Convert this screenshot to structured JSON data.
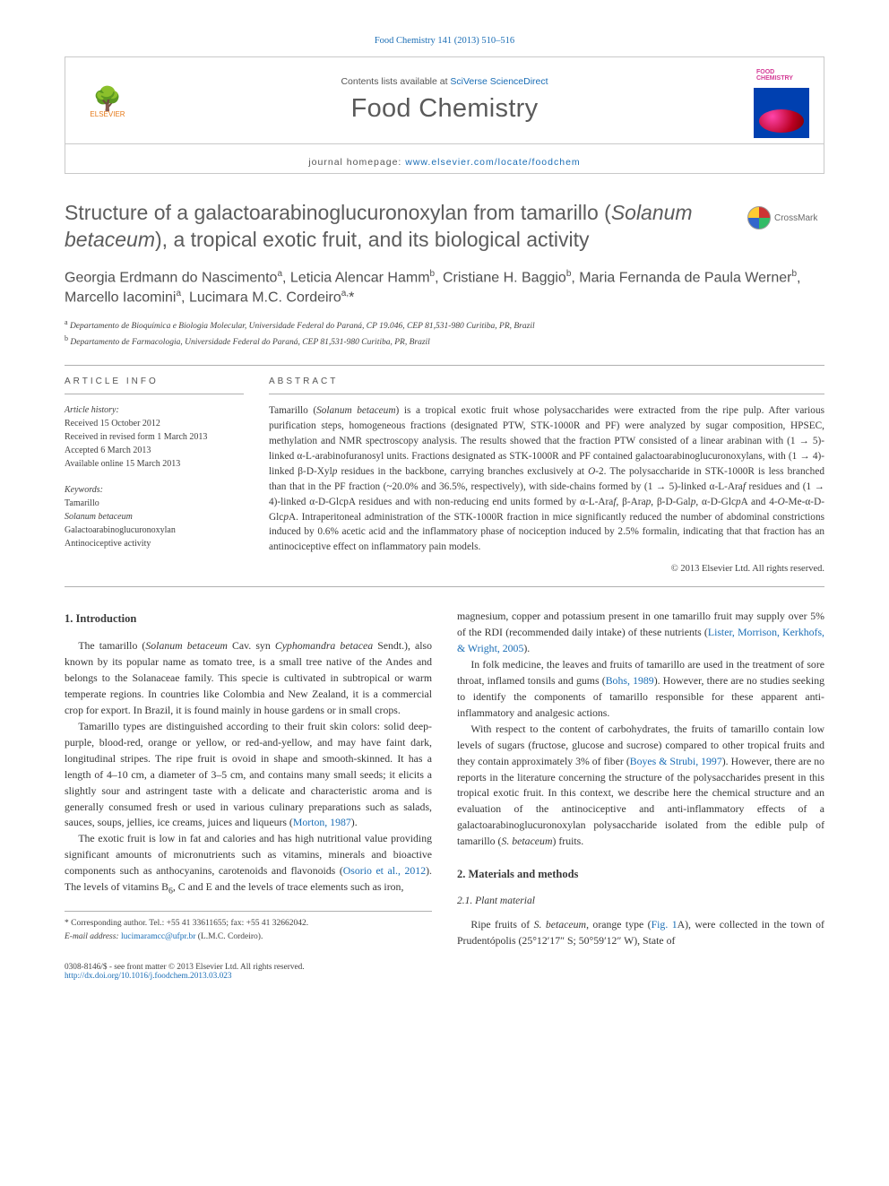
{
  "topline": {
    "journal_abbrev": "Food Chemistry 141 (2013) 510–516",
    "journal_link": "Food Chemistry 141 (2013) 510–516"
  },
  "masthead": {
    "contents_line_prefix": "Contents lists available at ",
    "contents_link": "SciVerse ScienceDirect",
    "journal_name": "Food Chemistry",
    "homepage_prefix": "journal homepage: ",
    "homepage_url": "www.elsevier.com/locate/foodchem",
    "publisher": "ELSEVIER",
    "cover_label": "FOOD CHEMISTRY"
  },
  "crossmark": {
    "label": "CrossMark"
  },
  "title": {
    "pre": "Structure of a galactoarabinoglucuronoxylan from tamarillo (",
    "ital": "Solanum betaceum",
    "post": "), a tropical exotic fruit, and its biological activity"
  },
  "authors_html": "Georgia Erdmann do Nascimento<sup>a</sup>, Leticia Alencar Hamm<sup>b</sup>, Cristiane H. Baggio<sup>b</sup>, Maria Fernanda de Paula Werner<sup>b</sup>, Marcello Iacomini<sup>a</sup>, Lucimara M.C. Cordeiro<sup>a,</sup><span class=\"aff-star\">*</span>",
  "affiliations": [
    {
      "sup": "a",
      "text": "Departamento de Bioquímica e Biologia Molecular, Universidade Federal do Paraná, CP 19.046, CEP 81,531-980 Curitiba, PR, Brazil"
    },
    {
      "sup": "b",
      "text": "Departamento de Farmacologia, Universidade Federal do Paraná, CEP 81,531-980 Curitiba, PR, Brazil"
    }
  ],
  "meta": {
    "article_info_heading": "ARTICLE INFO",
    "history_label": "Article history:",
    "history_lines": [
      "Received 15 October 2012",
      "Received in revised form 1 March 2013",
      "Accepted 6 March 2013",
      "Available online 15 March 2013"
    ],
    "keywords_label": "Keywords:",
    "keywords": [
      "Tamarillo",
      "<em>Solanum betaceum</em>",
      "Galactoarabinoglucuronoxylan",
      "Antinociceptive activity"
    ]
  },
  "abstract": {
    "heading": "ABSTRACT",
    "text": "Tamarillo (<em>Solanum betaceum</em>) is a tropical exotic fruit whose polysaccharides were extracted from the ripe pulp. After various purification steps, homogeneous fractions (designated PTW, STK-1000R and PF) were analyzed by sugar composition, HPSEC, methylation and NMR spectroscopy analysis. The results showed that the fraction PTW consisted of a linear arabinan with (1 → 5)-linked α-<span class=\"chem\">L</span>-arabinofuranosyl units. Fractions designated as STK-1000R and PF contained galactoarabinoglucuronoxylans, with (1 → 4)-linked β-<span class=\"chem\">D</span>-Xyl<em>p</em> residues in the backbone, carrying branches exclusively at <em>O</em>-2. The polysaccharide in STK-1000R is less branched than that in the PF fraction (~20.0% and 36.5%, respectively), with side-chains formed by (1 → 5)-linked α-<span class=\"chem\">L</span>-Ara<em>f</em> residues and (1 → 4)-linked α-<span class=\"chem\">D</span>-GlcpA residues and with non-reducing end units formed by α-<span class=\"chem\">L</span>-Ara<em>f</em>, β-Ara<em>p</em>, β-<span class=\"chem\">D</span>-Gal<em>p</em>, α-<span class=\"chem\">D</span>-Glc<em>p</em>A and 4-<em>O</em>-Me-α-<span class=\"chem\">D</span>-Glc<em>p</em>A. Intraperitoneal administration of the STK-1000R fraction in mice significantly reduced the number of abdominal constrictions induced by 0.6% acetic acid and the inflammatory phase of nociception induced by 2.5% formalin, indicating that that fraction has an antinociceptive effect on inflammatory pain models.",
    "copyright": "© 2013 Elsevier Ltd. All rights reserved."
  },
  "body": {
    "h1": "1. Introduction",
    "p1": "The tamarillo (<em>Solanum betaceum</em> Cav. syn <em>Cyphomandra betacea</em> Sendt.), also known by its popular name as tomato tree, is a small tree native of the Andes and belongs to the Solanaceae family. This specie is cultivated in subtropical or warm temperate regions. In countries like Colombia and New Zealand, it is a commercial crop for export. In Brazil, it is found mainly in house gardens or in small crops.",
    "p2": "Tamarillo types are distinguished according to their fruit skin colors: solid deep-purple, blood-red, orange or yellow, or red-and-yellow, and may have faint dark, longitudinal stripes. The ripe fruit is ovoid in shape and smooth-skinned. It has a length of 4–10 cm, a diameter of 3–5 cm, and contains many small seeds; it elicits a slightly sour and astringent taste with a delicate and characteristic aroma and is generally consumed fresh or used in various culinary preparations such as salads, sauces, soups, jellies, ice creams, juices and liqueurs (<a href=\"#\">Morton, 1987</a>).",
    "p3": "The exotic fruit is low in fat and calories and has high nutritional value providing significant amounts of micronutrients such as vitamins, minerals and bioactive components such as anthocyanins, carotenoids and flavonoids (<a href=\"#\">Osorio et al., 2012</a>). The levels of vitamins B<sub>6</sub>, C and E and the levels of trace elements such as iron,",
    "p4": "magnesium, copper and potassium present in one tamarillo fruit may supply over 5% of the RDI (recommended daily intake) of these nutrients (<a href=\"#\">Lister, Morrison, Kerkhofs, & Wright, 2005</a>).",
    "p5": "In folk medicine, the leaves and fruits of tamarillo are used in the treatment of sore throat, inflamed tonsils and gums (<a href=\"#\">Bohs, 1989</a>). However, there are no studies seeking to identify the components of tamarillo responsible for these apparent anti-inflammatory and analgesic actions.",
    "p6": "With respect to the content of carbohydrates, the fruits of tamarillo contain low levels of sugars (fructose, glucose and sucrose) compared to other tropical fruits and they contain approximately 3% of fiber (<a href=\"#\">Boyes & Strubi, 1997</a>). However, there are no reports in the literature concerning the structure of the polysaccharides present in this tropical exotic fruit. In this context, we describe here the chemical structure and an evaluation of the antinociceptive and anti-inflammatory effects of a galactoarabinoglucuronoxylan polysaccharide isolated from the edible pulp of tamarillo (<em>S. betaceum</em>) fruits.",
    "h2": "2. Materials and methods",
    "s21": "2.1. Plant material",
    "p7": "Ripe fruits of <em>S. betaceum</em>, orange type (<a href=\"#\">Fig. 1</a>A), were collected in the town of Prudentópolis (25°12′17″ S; 50°59′12″ W), State of"
  },
  "footer": {
    "corr_label": "* Corresponding author. Tel.: +55 41 33611655; fax: +55 41 32662042.",
    "email_label": "E-mail address:",
    "email": "lucimaramcc@ufpr.br",
    "email_who": "(L.M.C. Cordeiro).",
    "left": "0308-8146/$ - see front matter © 2013 Elsevier Ltd. All rights reserved.",
    "doi": "http://dx.doi.org/10.1016/j.foodchem.2013.03.023"
  },
  "colors": {
    "link": "#1a6db5",
    "border": "#b0b0b0",
    "text": "#3a3a3a",
    "heading": "#5c5c5c"
  }
}
